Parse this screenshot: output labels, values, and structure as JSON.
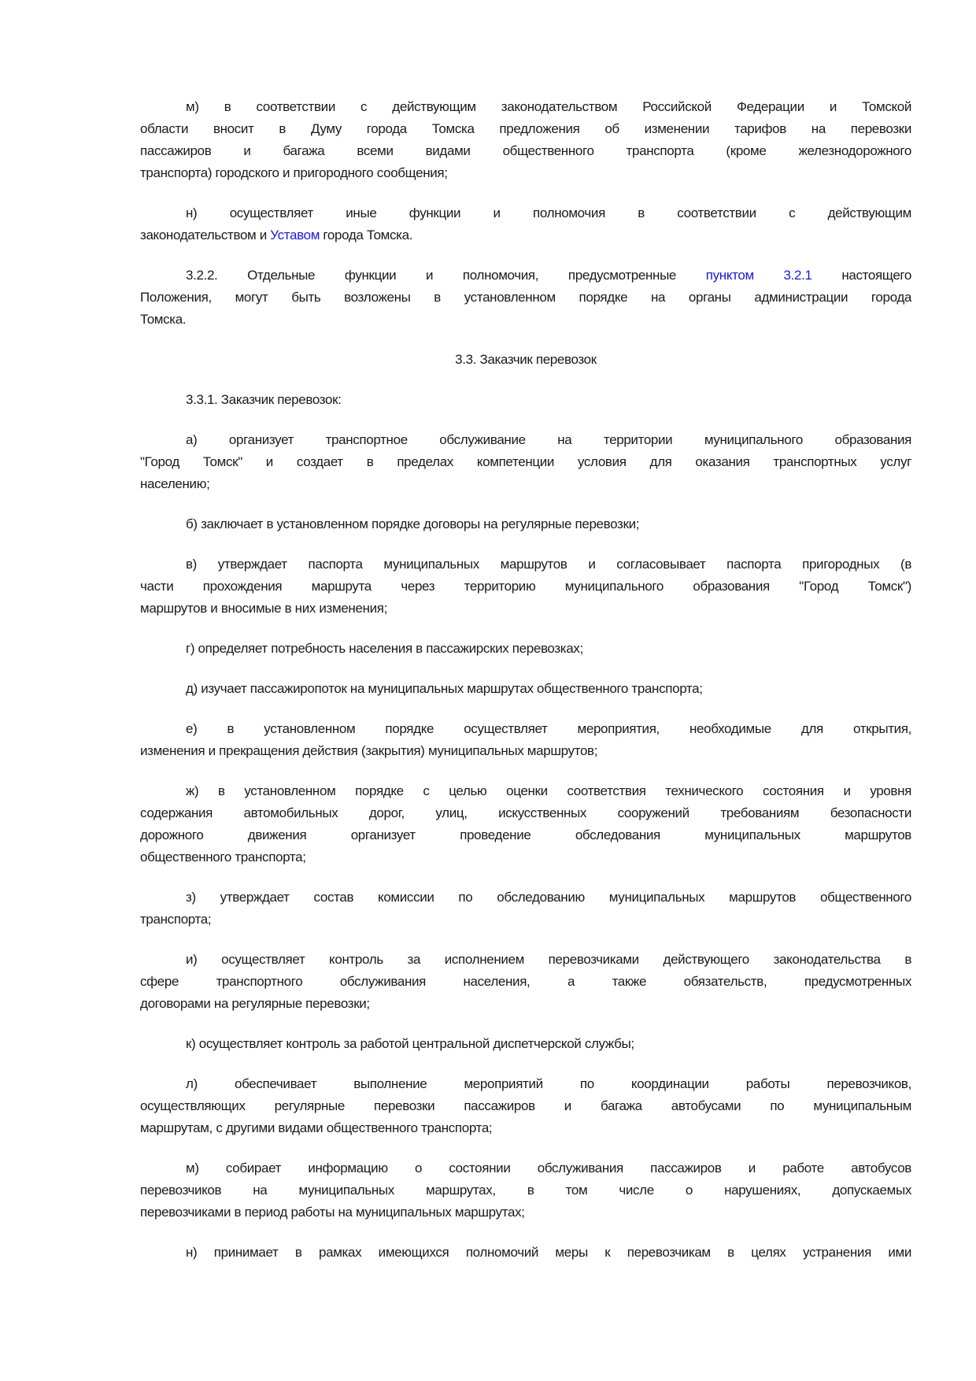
{
  "link_color": "#1a1adc",
  "paragraphs": [
    {
      "lines": [
        [
          {
            "t": "м) в соответствии с действующим законодательством Российской Федерации и Томской"
          }
        ],
        [
          {
            "t": "области вносит в Думу города Томска предложения об изменении тарифов на перевозки"
          }
        ],
        [
          {
            "t": "пассажиров и багажа всеми видами общественного транспорта (кроме железнодорожного"
          }
        ],
        [
          {
            "t": "транспорта) городского и пригородного сообщения;"
          }
        ]
      ]
    },
    {
      "lines": [
        [
          {
            "t": "н) осуществляет иные функции и полномочия в соответствии с действующим"
          }
        ],
        [
          {
            "t": "законодательством и "
          },
          {
            "t": "Уставом",
            "link": true
          },
          {
            "t": " города Томска."
          }
        ]
      ]
    },
    {
      "lines": [
        [
          {
            "t": "3.2.2. Отдельные функции и полномочия, предусмотренные "
          },
          {
            "t": "пунктом 3.2.1",
            "link": true
          },
          {
            "t": " настоящего"
          }
        ],
        [
          {
            "t": "Положения, могут быть возложены в установленном порядке на органы администрации города"
          }
        ],
        [
          {
            "t": "Томска."
          }
        ]
      ]
    },
    {
      "heading": true,
      "lines": [
        [
          {
            "t": "3.3. Заказчик перевозок"
          }
        ]
      ]
    },
    {
      "lines": [
        [
          {
            "t": "3.3.1. Заказчик перевозок:"
          }
        ]
      ]
    },
    {
      "lines": [
        [
          {
            "t": "а) организует транспортное обслуживание на территории муниципального образования"
          }
        ],
        [
          {
            "t": "\"Город Томск\" и создает в пределах компетенции условия для оказания транспортных услуг"
          }
        ],
        [
          {
            "t": "населению;"
          }
        ]
      ]
    },
    {
      "lines": [
        [
          {
            "t": "б) заключает в установленном порядке договоры на регулярные перевозки;"
          }
        ]
      ]
    },
    {
      "lines": [
        [
          {
            "t": "в) утверждает паспорта муниципальных маршрутов и согласовывает паспорта пригородных (в"
          }
        ],
        [
          {
            "t": "части прохождения маршрута через территорию муниципального образования \"Город Томск\")"
          }
        ],
        [
          {
            "t": "маршрутов и вносимые в них изменения;"
          }
        ]
      ]
    },
    {
      "lines": [
        [
          {
            "t": "г) определяет потребность населения в пассажирских перевозках;"
          }
        ]
      ]
    },
    {
      "lines": [
        [
          {
            "t": "д) изучает пассажиропоток на муниципальных маршрутах общественного транспорта;"
          }
        ]
      ]
    },
    {
      "lines": [
        [
          {
            "t": "е) в установленном порядке осуществляет мероприятия, необходимые для открытия,"
          }
        ],
        [
          {
            "t": "изменения и прекращения действия (закрытия) муниципальных маршрутов;"
          }
        ]
      ]
    },
    {
      "lines": [
        [
          {
            "t": "ж) в установленном порядке с целью оценки соответствия технического состояния и уровня"
          }
        ],
        [
          {
            "t": "содержания автомобильных дорог, улиц, искусственных сооружений требованиям безопасности"
          }
        ],
        [
          {
            "t": "дорожного движения организует проведение обследования муниципальных маршрутов"
          }
        ],
        [
          {
            "t": "общественного транспорта;"
          }
        ]
      ]
    },
    {
      "lines": [
        [
          {
            "t": "з) утверждает состав комиссии по обследованию муниципальных маршрутов общественного"
          }
        ],
        [
          {
            "t": "транспорта;"
          }
        ]
      ]
    },
    {
      "lines": [
        [
          {
            "t": "и) осуществляет контроль за исполнением перевозчиками действующего законодательства в"
          }
        ],
        [
          {
            "t": "сфере транспортного обслуживания населения, а также обязательств, предусмотренных"
          }
        ],
        [
          {
            "t": "договорами на регулярные перевозки;"
          }
        ]
      ]
    },
    {
      "lines": [
        [
          {
            "t": "к) осуществляет контроль за работой центральной диспетчерской службы;"
          }
        ]
      ]
    },
    {
      "lines": [
        [
          {
            "t": "л) обеспечивает выполнение мероприятий по координации работы перевозчиков,"
          }
        ],
        [
          {
            "t": "осуществляющих регулярные перевозки пассажиров и багажа автобусами по муниципальным"
          }
        ],
        [
          {
            "t": "маршрутам, с другими видами общественного транспорта;"
          }
        ]
      ]
    },
    {
      "lines": [
        [
          {
            "t": "м) собирает информацию о состоянии обслуживания пассажиров и работе автобусов"
          }
        ],
        [
          {
            "t": "перевозчиков на муниципальных маршрутах, в том числе о нарушениях, допускаемых"
          }
        ],
        [
          {
            "t": "перевозчиками в период работы на муниципальных маршрутах;"
          }
        ]
      ]
    },
    {
      "lines": [
        [
          {
            "t": "н) принимает в рамках имеющихся полномочий меры к перевозчикам в целях устранения ими"
          }
        ]
      ],
      "continues": true
    }
  ]
}
